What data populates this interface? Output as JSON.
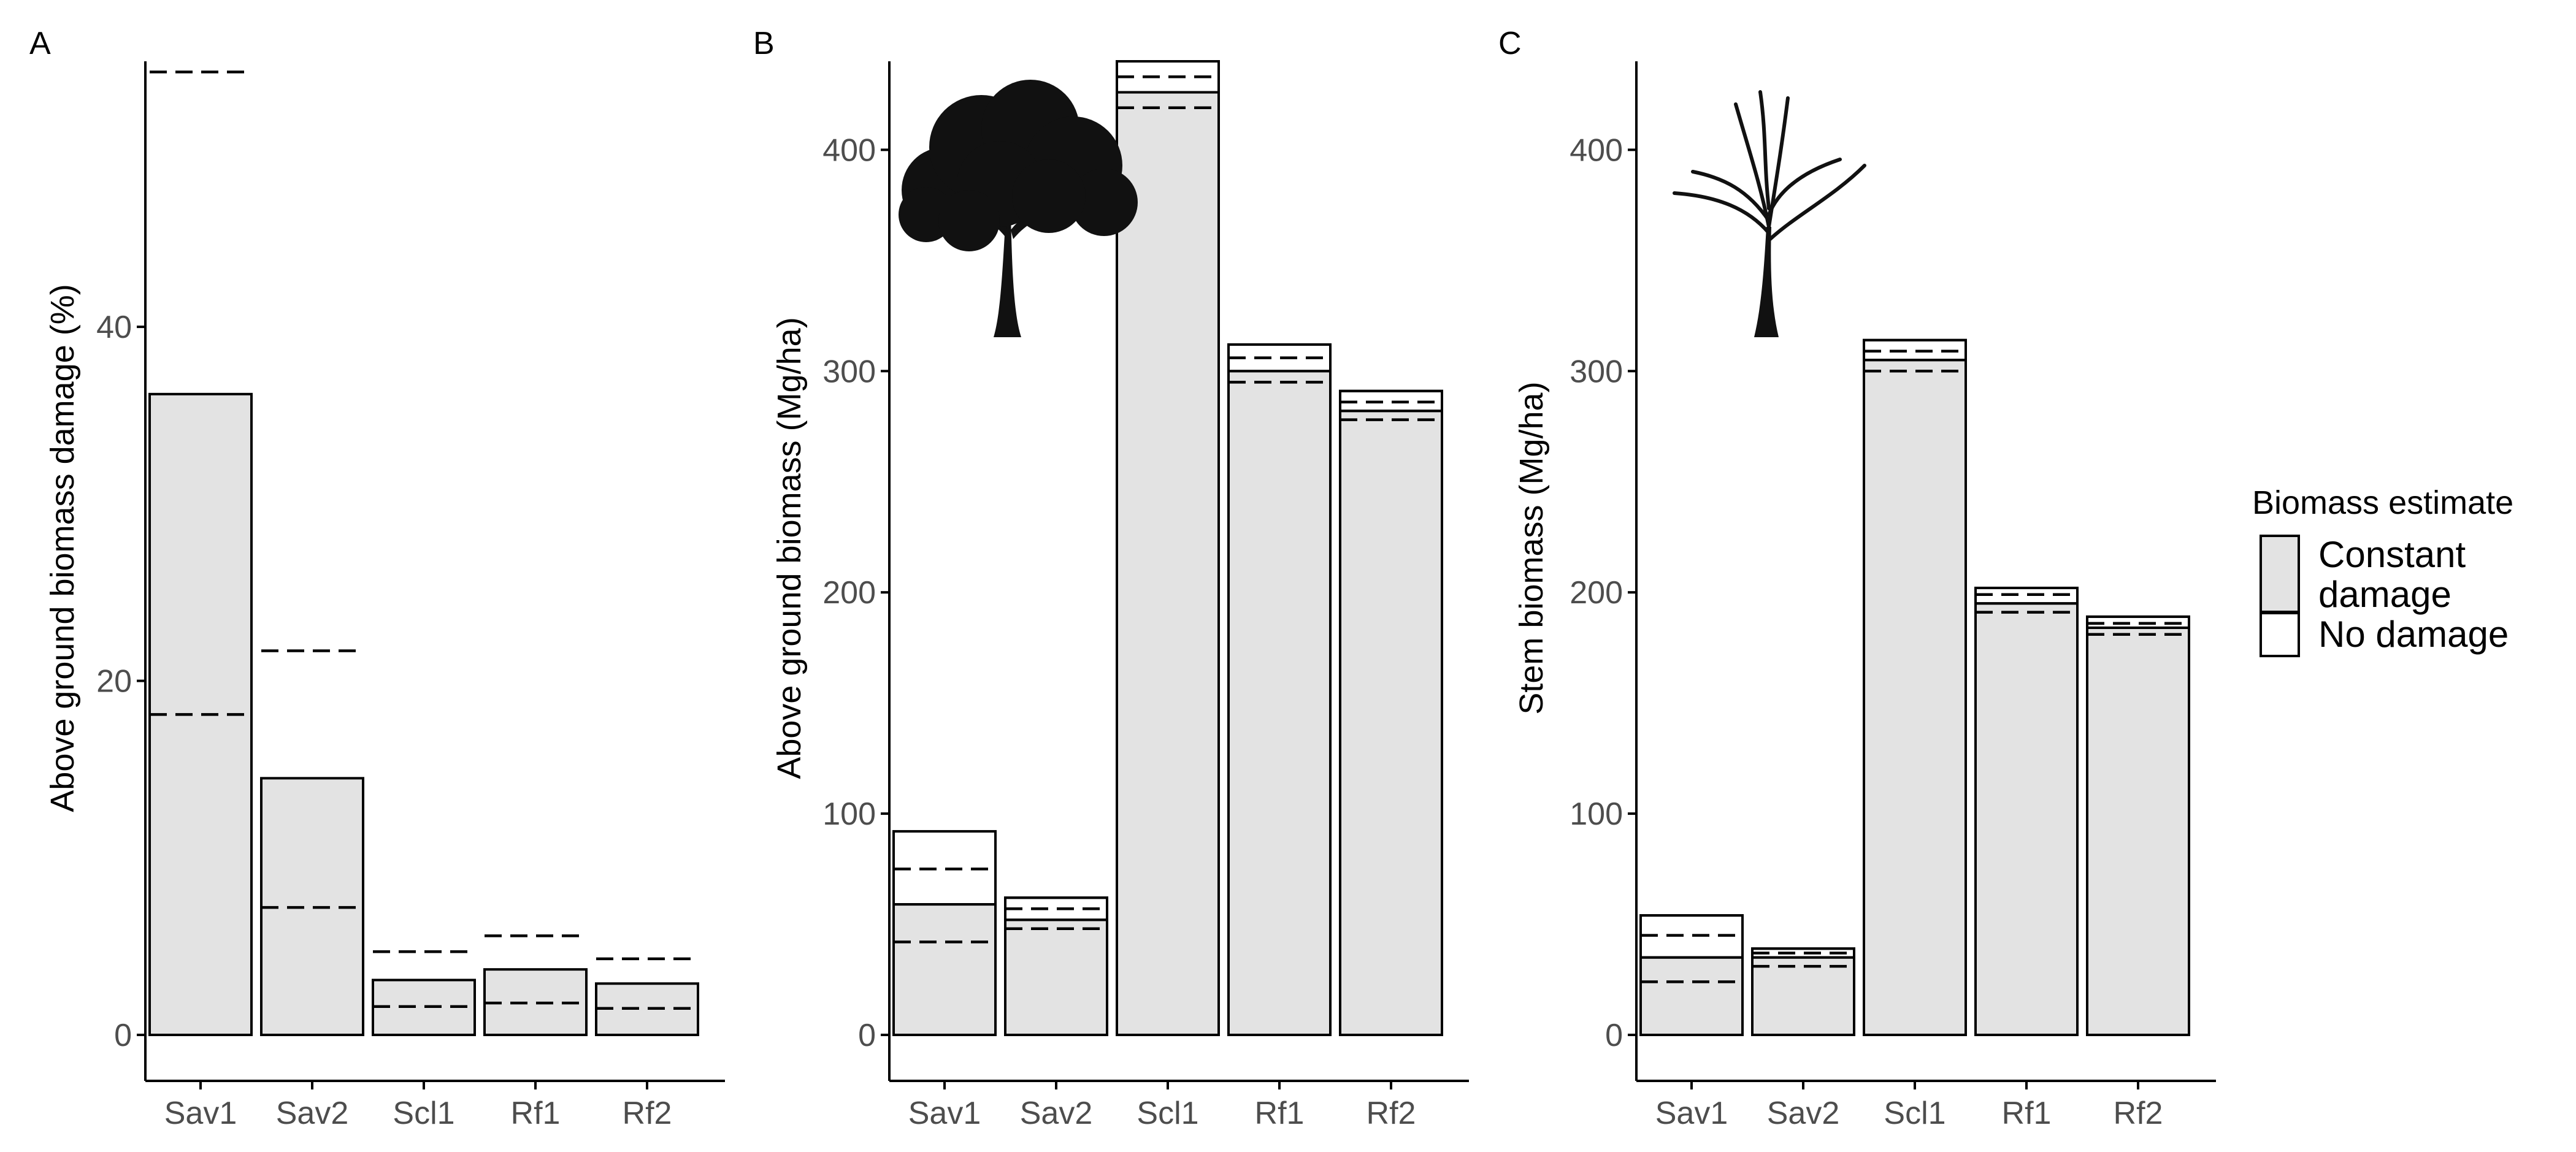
{
  "colors": {
    "constant_fill": "#e3e3e3",
    "no_damage_fill": "#ffffff",
    "line": "#000000",
    "tick_text": "#4d4d4d"
  },
  "legend": {
    "title": "Biomass estimate",
    "items": [
      {
        "label_lines": [
          "Constant",
          "damage"
        ],
        "fill": "#e3e3e3"
      },
      {
        "label_lines": [
          "No damage"
        ],
        "fill": "#ffffff"
      }
    ],
    "position": "right"
  },
  "chart_data": [
    {
      "panel": "A",
      "type": "bar",
      "ylabel": "Above ground biomass damage (%)",
      "ylim": [
        0,
        55
      ],
      "yticks": [
        0,
        20,
        40
      ],
      "categories": [
        "Sav1",
        "Sav2",
        "Scl1",
        "Rf1",
        "Rf2"
      ],
      "series": [
        {
          "name": "Constant damage",
          "values": [
            36.2,
            14.5,
            3.1,
            3.7,
            2.9
          ]
        }
      ],
      "dashed_lower": [
        18.1,
        7.2,
        1.6,
        1.8,
        1.5
      ],
      "dashed_upper": [
        54.4,
        21.7,
        4.7,
        5.6,
        4.3
      ],
      "icon": null
    },
    {
      "panel": "B",
      "type": "bar",
      "ylabel": "Above ground biomass (Mg/ha)",
      "ylim": [
        0,
        440
      ],
      "yticks": [
        0,
        100,
        200,
        300,
        400
      ],
      "categories": [
        "Sav1",
        "Sav2",
        "Scl1",
        "Rf1",
        "Rf2"
      ],
      "series": [
        {
          "name": "Constant damage",
          "values": [
            59,
            52,
            426,
            300,
            282
          ]
        },
        {
          "name": "No damage",
          "values": [
            92,
            62,
            440,
            312,
            291
          ]
        }
      ],
      "dashed_lower": [
        42,
        48,
        419,
        295,
        278
      ],
      "dashed_upper": [
        75,
        57,
        433,
        306,
        286
      ],
      "icon": "leafy-tree-icon"
    },
    {
      "panel": "C",
      "type": "bar",
      "ylabel": "Stem biomass (Mg/ha)",
      "ylim": [
        0,
        440
      ],
      "yticks": [
        0,
        100,
        200,
        300,
        400
      ],
      "categories": [
        "Sav1",
        "Sav2",
        "Scl1",
        "Rf1",
        "Rf2"
      ],
      "series": [
        {
          "name": "Constant damage",
          "values": [
            35,
            35,
            305,
            195,
            184
          ]
        },
        {
          "name": "No damage",
          "values": [
            54,
            39,
            314,
            202,
            189
          ]
        }
      ],
      "dashed_lower": [
        24,
        31,
        300,
        191,
        181
      ],
      "dashed_upper": [
        45,
        37,
        309,
        199,
        186
      ],
      "icon": "bare-tree-icon"
    }
  ]
}
